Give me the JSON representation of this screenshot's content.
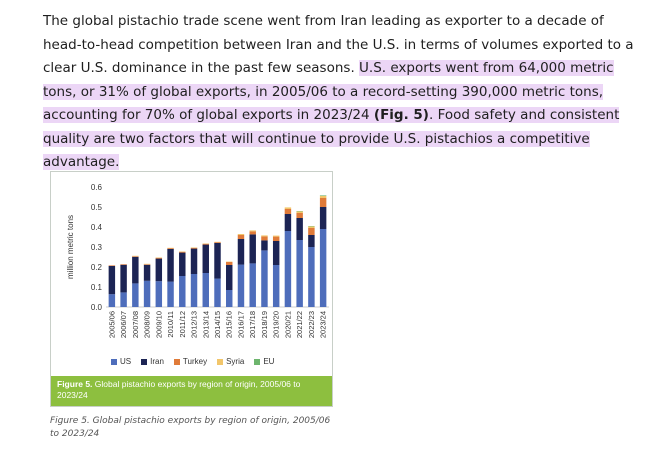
{
  "article": {
    "text_plain": "The global pistachio trade scene went from Iran leading as exporter to a decade of head-to-head competition between Iran and the U.S. in terms of volumes exported to a clear U.S. dominance in the past few seasons. ",
    "text_highlight": "U.S. exports went from 64,000 metric tons, or 31% of global exports, in 2005/06 to a record-setting 390,000 metric tons, accounting for 70% of global exports in 2023/24 ",
    "text_highlight_ref": "(Fig. 5)",
    "text_highlight_end": ". Food safety and consistent quality are two factors that will continue to provide U.S. pistachios a competitive advantage."
  },
  "figure": {
    "banner_label": "Figure 5.",
    "banner_text": " Global pistachio exports by region of origin, 2005/06 to 2023/24",
    "caption": "Figure 5. Global pistachio exports by region of origin, 2005/06 to 2023/24"
  },
  "chart_data": {
    "type": "bar",
    "stacked": true,
    "ylabel": "million metric tons",
    "ylim": [
      0,
      0.6
    ],
    "yticks": [
      "0.0",
      "0.1",
      "0.2",
      "0.3",
      "0.4",
      "0.5",
      "0.6"
    ],
    "categories": [
      "2005/06",
      "2006/07",
      "2007/08",
      "2008/09",
      "2009/10",
      "2010/11",
      "2011/12",
      "2012/13",
      "2013/14",
      "2014/15",
      "2015/16",
      "2016/17",
      "2017/18",
      "2018/19",
      "2019/20",
      "2020/21",
      "2021/22",
      "2022/23",
      "2023/24"
    ],
    "series": [
      {
        "name": "US",
        "color": "#4e6dbb",
        "values": [
          0.064,
          0.073,
          0.118,
          0.131,
          0.129,
          0.127,
          0.155,
          0.165,
          0.17,
          0.142,
          0.085,
          0.212,
          0.218,
          0.283,
          0.21,
          0.38,
          0.335,
          0.3,
          0.39
        ]
      },
      {
        "name": "Iran",
        "color": "#1c2454",
        "values": [
          0.141,
          0.138,
          0.133,
          0.08,
          0.113,
          0.163,
          0.117,
          0.127,
          0.142,
          0.178,
          0.125,
          0.128,
          0.145,
          0.05,
          0.12,
          0.085,
          0.11,
          0.06,
          0.11
        ]
      },
      {
        "name": "Turkey",
        "color": "#e07b39",
        "values": [
          0.003,
          0.003,
          0.003,
          0.003,
          0.004,
          0.004,
          0.004,
          0.004,
          0.004,
          0.004,
          0.015,
          0.02,
          0.015,
          0.02,
          0.022,
          0.025,
          0.025,
          0.035,
          0.045
        ]
      },
      {
        "name": "Syria",
        "color": "#f2c66b",
        "values": [
          0,
          0,
          0.002,
          0.002,
          0.002,
          0.002,
          0.002,
          0.002,
          0.002,
          0.002,
          0.002,
          0.005,
          0.005,
          0.005,
          0.005,
          0.008,
          0.008,
          0.008,
          0.01
        ]
      },
      {
        "name": "EU",
        "color": "#6db56d",
        "values": [
          0,
          0,
          0,
          0,
          0,
          0,
          0,
          0,
          0,
          0,
          0,
          0,
          0,
          0,
          0,
          0,
          0.002,
          0.002,
          0.003
        ]
      }
    ]
  }
}
